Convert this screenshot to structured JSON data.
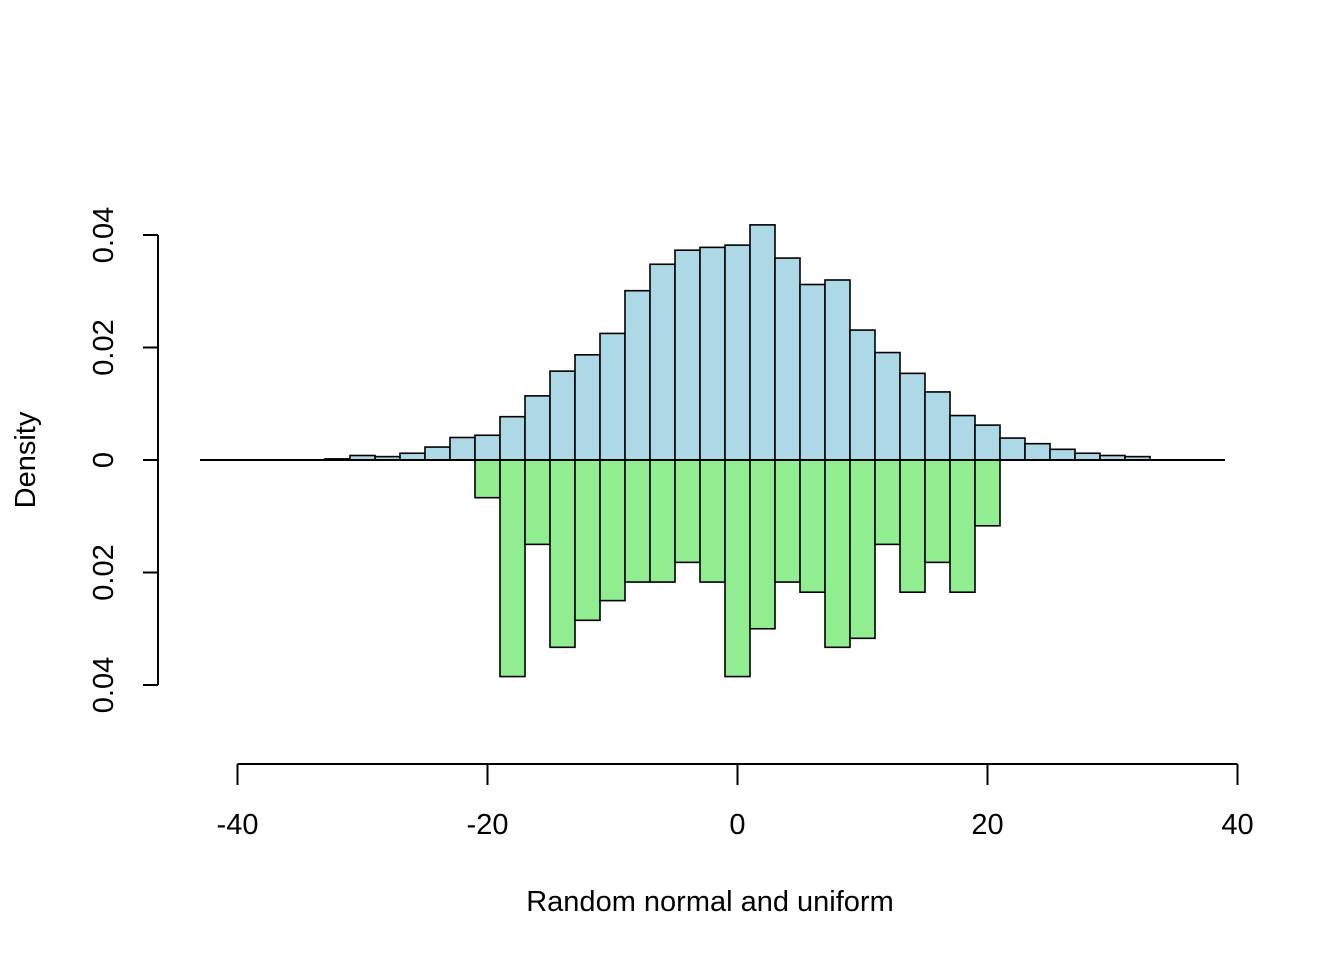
{
  "chart_data": {
    "type": "bar",
    "xlabel": "Random normal and uniform",
    "ylabel": "Density",
    "xlim": [
      -40,
      40
    ],
    "x_ticks": [
      -40,
      -20,
      0,
      20,
      40
    ],
    "x_tick_labels": [
      "-40",
      "-20",
      "0",
      "20",
      "40"
    ],
    "ylim": [
      -0.04,
      0.04
    ],
    "y_ticks": [
      0.04,
      0.02,
      0,
      -0.02,
      -0.04
    ],
    "y_tick_labels": [
      "0.04",
      "0.02",
      "0",
      "0.02",
      "0.04"
    ],
    "grid": false,
    "baseline_range": [
      -43,
      39
    ],
    "series": [
      {
        "color": "#add8e6",
        "direction": "up",
        "bin_width": 2,
        "bins_start": [
          -33,
          -31,
          -29,
          -27,
          -25,
          -23,
          -21,
          -19,
          -17,
          -15,
          -13,
          -11,
          -9,
          -7,
          -5,
          -3,
          -1,
          1,
          3,
          5,
          7,
          9,
          11,
          13,
          15,
          17,
          19,
          21,
          23,
          25,
          27,
          29,
          31
        ],
        "values": [
          0.0002,
          0.0008,
          0.0006,
          0.0012,
          0.0023,
          0.004,
          0.0044,
          0.0077,
          0.0114,
          0.0158,
          0.0187,
          0.0225,
          0.0301,
          0.0348,
          0.0373,
          0.0378,
          0.0382,
          0.0418,
          0.0359,
          0.0312,
          0.032,
          0.0231,
          0.0191,
          0.0154,
          0.0121,
          0.0079,
          0.0062,
          0.0039,
          0.0029,
          0.0019,
          0.0012,
          0.0008,
          0.0006
        ]
      },
      {
        "color": "#90ee90",
        "direction": "down",
        "bin_width": 2,
        "bins_start": [
          -21,
          -19,
          -17,
          -15,
          -13,
          -11,
          -9,
          -7,
          -5,
          -3,
          -1,
          1,
          3,
          5,
          7,
          9,
          11,
          13,
          15,
          17,
          19
        ],
        "values": [
          0.0067,
          0.0385,
          0.015,
          0.0333,
          0.0285,
          0.025,
          0.0217,
          0.0217,
          0.0182,
          0.0217,
          0.0385,
          0.03,
          0.0217,
          0.0235,
          0.0333,
          0.0317,
          0.015,
          0.0235,
          0.0182,
          0.0235,
          0.0117
        ]
      }
    ]
  }
}
